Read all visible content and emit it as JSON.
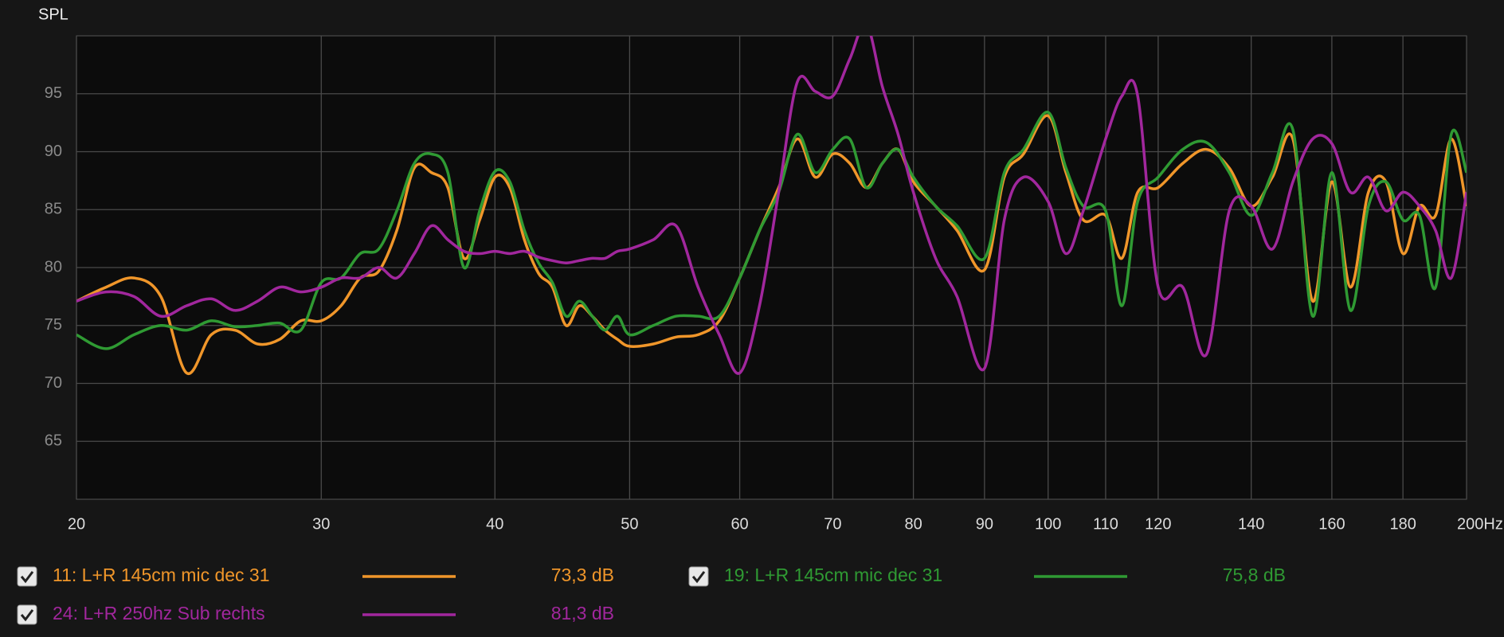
{
  "chart_data": {
    "type": "line",
    "ylabel": "SPL",
    "log_x": true,
    "grid": true,
    "xlim": [
      20,
      200
    ],
    "ylim": [
      60,
      100
    ],
    "xticks": [
      20,
      30,
      40,
      50,
      60,
      70,
      80,
      90,
      100,
      110,
      120,
      140,
      160,
      180,
      {
        "value": 200,
        "label": "200Hz"
      }
    ],
    "yticks": [
      65,
      70,
      75,
      80,
      85,
      90,
      95
    ],
    "x": [
      20,
      21,
      22,
      23,
      24,
      25,
      26,
      27,
      28,
      29,
      30,
      31,
      32,
      33,
      34,
      35,
      36,
      37,
      38,
      39,
      40,
      41,
      42,
      43,
      44,
      45,
      46,
      47,
      48,
      49,
      50,
      52,
      54,
      56,
      58,
      60,
      62,
      64,
      66,
      68,
      70,
      72,
      74,
      76,
      78,
      80,
      83,
      86,
      90,
      93,
      96,
      100,
      103,
      106,
      110,
      113,
      116,
      120,
      125,
      130,
      135,
      140,
      145,
      150,
      155,
      160,
      165,
      170,
      175,
      180,
      185,
      190,
      195,
      200
    ],
    "series": [
      {
        "name": "11: L+R 145cm mic dec 31",
        "color": "#f0962a",
        "reading": {
          "value": 73.3,
          "label": "73,3 dB"
        },
        "values": [
          77.1,
          78.3,
          79.1,
          77.5,
          70.9,
          74.2,
          74.6,
          73.4,
          73.8,
          75.4,
          75.4,
          76.7,
          79.1,
          79.7,
          83.2,
          88.6,
          88.2,
          86.9,
          80.8,
          84.1,
          87.8,
          86.9,
          82.4,
          79.5,
          78.3,
          75.0,
          76.7,
          75.8,
          74.6,
          73.8,
          73.2,
          73.4,
          74.0,
          74.2,
          75.4,
          79.1,
          83.2,
          86.9,
          91.1,
          87.8,
          89.8,
          89.0,
          86.9,
          89.0,
          90.2,
          87.4,
          85.3,
          83.2,
          79.8,
          87.8,
          89.8,
          93.1,
          88.2,
          84.1,
          84.5,
          80.8,
          86.5,
          86.9,
          89.0,
          90.2,
          88.6,
          85.3,
          87.8,
          91.1,
          77.1,
          87.4,
          78.3,
          86.5,
          87.4,
          81.2,
          85.3,
          84.5,
          91.1,
          85.3
        ]
      },
      {
        "name": "19: L+R 145cm mic dec 31",
        "color": "#2f9a33",
        "reading": {
          "value": 75.8,
          "label": "75,8 dB"
        },
        "values": [
          74.2,
          73.0,
          74.2,
          75.0,
          74.6,
          75.4,
          74.9,
          75.0,
          75.2,
          74.6,
          78.7,
          79.1,
          81.2,
          81.6,
          84.9,
          89.0,
          89.8,
          88.2,
          80.0,
          84.9,
          88.3,
          87.4,
          83.2,
          80.4,
          78.7,
          75.8,
          77.1,
          75.8,
          74.6,
          75.8,
          74.2,
          75.0,
          75.8,
          75.8,
          75.8,
          79.1,
          83.2,
          86.5,
          91.5,
          88.2,
          90.2,
          91.1,
          86.9,
          89.0,
          90.2,
          87.8,
          85.3,
          83.6,
          80.8,
          88.2,
          90.2,
          93.4,
          88.6,
          85.3,
          84.9,
          76.7,
          85.7,
          87.8,
          90.2,
          90.8,
          88.2,
          84.5,
          88.2,
          91.9,
          75.8,
          88.2,
          76.3,
          85.3,
          87.4,
          84.1,
          84.5,
          78.3,
          91.5,
          88.2
        ]
      },
      {
        "name": "24: L+R 250hz Sub rechts",
        "color": "#a1279d",
        "reading": {
          "value": 81.3,
          "label": "81,3 dB"
        },
        "values": [
          77.1,
          77.9,
          77.5,
          75.8,
          76.7,
          77.3,
          76.3,
          77.1,
          78.3,
          77.9,
          78.3,
          79.1,
          79.1,
          80.0,
          79.1,
          81.2,
          83.6,
          82.4,
          81.4,
          81.2,
          81.4,
          81.2,
          81.4,
          80.9,
          80.6,
          80.4,
          80.6,
          80.8,
          80.8,
          81.4,
          81.6,
          82.4,
          83.6,
          78.3,
          74.2,
          70.9,
          76.7,
          86.5,
          96.0,
          95.2,
          94.8,
          98.0,
          101,
          95.6,
          91.5,
          86.5,
          80.8,
          77.5,
          71.3,
          84.1,
          87.8,
          85.7,
          81.2,
          84.9,
          91.1,
          94.8,
          94.8,
          78.3,
          78.3,
          72.5,
          84.9,
          85.3,
          81.6,
          87.4,
          91.1,
          90.7,
          86.5,
          87.8,
          84.9,
          86.5,
          85.3,
          83.2,
          79.1,
          86.5
        ]
      }
    ]
  }
}
